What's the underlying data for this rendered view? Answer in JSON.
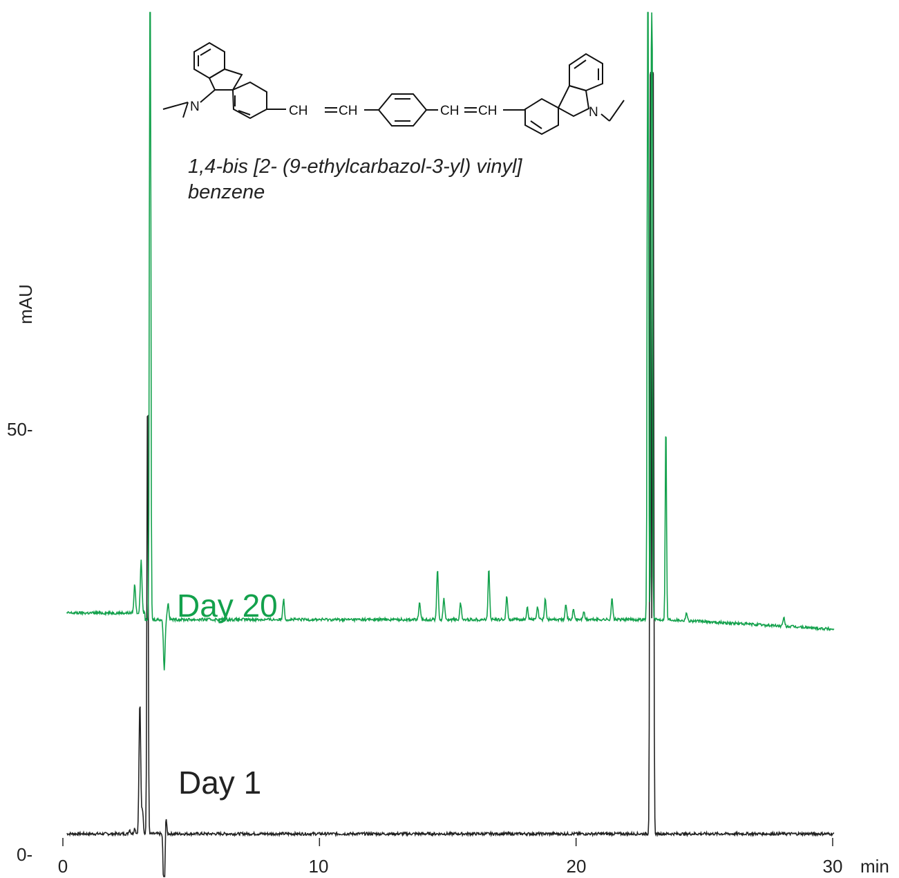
{
  "chart_data": {
    "type": "line",
    "xlabel": "min",
    "ylabel": "mAU",
    "xlim": [
      0,
      30
    ],
    "x_ticks": [
      "0",
      "10",
      "20",
      "30"
    ],
    "y_ticks": [
      "0-",
      "50-"
    ],
    "grid": false,
    "annotation": {
      "compound_line1": "1,4-bis [2- (9-ethylcarbazol-3-yl) vinyl]",
      "compound_line2": "benzene",
      "mol_labels": [
        "N",
        "CH",
        "CH",
        "CH",
        "CH",
        "N"
      ]
    },
    "series": [
      {
        "name": "Day 1",
        "color": "#222222",
        "baseline": 1.0,
        "peaks": [
          {
            "x": 2.6,
            "h": 0.5
          },
          {
            "x": 2.8,
            "h": 0.7
          },
          {
            "x": 3.0,
            "h": 16.0
          },
          {
            "x": 3.1,
            "h": 3.0
          },
          {
            "x": 3.3,
            "h": 55.0
          },
          {
            "x": 3.95,
            "h": -11.0
          },
          {
            "x": 4.0,
            "h": 3.5
          },
          {
            "x": 22.9,
            "h": 100.0
          },
          {
            "x": 23.0,
            "h": 100.0
          }
        ]
      },
      {
        "name": "Day 20",
        "color": "#13a14c",
        "baseline": 27.0,
        "peaks": [
          {
            "x": 2.8,
            "h": 3.5
          },
          {
            "x": 3.05,
            "h": 6.5
          },
          {
            "x": 3.4,
            "h": 100.0
          },
          {
            "x": 3.95,
            "h": -6.0
          },
          {
            "x": 4.1,
            "h": 2.0
          },
          {
            "x": 8.6,
            "h": 2.5
          },
          {
            "x": 13.9,
            "h": 2.0
          },
          {
            "x": 14.6,
            "h": 6.0
          },
          {
            "x": 14.85,
            "h": 2.5
          },
          {
            "x": 15.5,
            "h": 2.0
          },
          {
            "x": 16.6,
            "h": 6.0
          },
          {
            "x": 17.3,
            "h": 2.8
          },
          {
            "x": 18.1,
            "h": 1.5
          },
          {
            "x": 18.5,
            "h": 1.5
          },
          {
            "x": 18.8,
            "h": 2.5
          },
          {
            "x": 19.6,
            "h": 2.0
          },
          {
            "x": 19.9,
            "h": 1.2
          },
          {
            "x": 20.3,
            "h": 1.0
          },
          {
            "x": 21.4,
            "h": 2.5
          },
          {
            "x": 22.8,
            "h": 96.0
          },
          {
            "x": 22.95,
            "h": 96.0
          },
          {
            "x": 23.5,
            "h": 24.0
          },
          {
            "x": 24.3,
            "h": 1.0
          },
          {
            "x": 28.1,
            "h": 1.0
          }
        ]
      }
    ]
  }
}
